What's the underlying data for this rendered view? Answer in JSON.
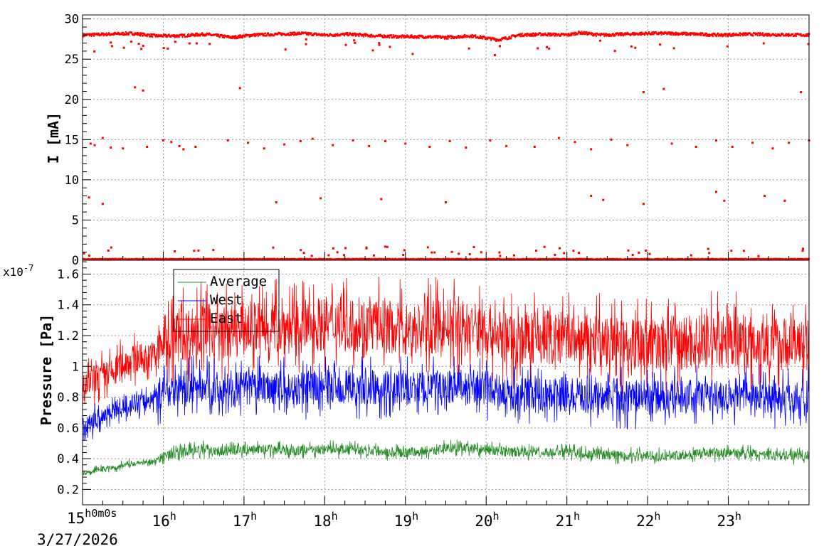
{
  "chart_data": [
    {
      "type": "scatter",
      "panel": "top",
      "ylabel": "I [mA]",
      "ylim": [
        0,
        30.5
      ],
      "yticks": [
        0,
        5,
        10,
        15,
        20,
        25,
        30
      ],
      "ytick_labels": [
        "0",
        "5",
        "10",
        "15",
        "20",
        "25",
        "30"
      ],
      "xlim_hours": [
        15.0,
        24.0
      ],
      "grid": true,
      "series": [
        {
          "color": "#ff0000",
          "marker": "square",
          "main_band_mA": [
            28.0,
            28.1,
            28.2,
            27.9,
            27.9,
            28.1,
            27.7,
            28.0,
            28.1,
            28.2,
            28.0,
            28.1,
            27.9,
            27.8,
            27.8,
            27.7,
            27.9,
            27.4,
            28.0,
            28.1,
            28.0,
            28.3,
            28.0,
            28.1,
            28.2,
            28.2,
            28.1,
            28.0,
            28.1,
            28.0
          ],
          "main_band_hours": [
            15.0,
            15.3,
            15.6,
            15.9,
            16.2,
            16.5,
            16.85,
            17.1,
            17.4,
            17.7,
            18.0,
            18.3,
            18.6,
            18.9,
            19.2,
            19.5,
            19.8,
            20.15,
            20.4,
            20.7,
            21.0,
            21.15,
            21.4,
            21.7,
            22.0,
            22.3,
            22.6,
            22.9,
            23.2,
            23.9
          ],
          "outliers": [
            {
              "x": 15.1,
              "y": 14.5
            },
            {
              "x": 15.15,
              "y": 14.3
            },
            {
              "x": 15.25,
              "y": 15.2
            },
            {
              "x": 15.35,
              "y": 14.0
            },
            {
              "x": 15.5,
              "y": 13.9
            },
            {
              "x": 15.65,
              "y": 21.5
            },
            {
              "x": 15.75,
              "y": 21.1
            },
            {
              "x": 15.8,
              "y": 14.1
            },
            {
              "x": 16.0,
              "y": 14.9
            },
            {
              "x": 16.1,
              "y": 14.7
            },
            {
              "x": 16.2,
              "y": 14.2
            },
            {
              "x": 16.25,
              "y": 13.8
            },
            {
              "x": 16.4,
              "y": 14.1
            },
            {
              "x": 16.8,
              "y": 14.9
            },
            {
              "x": 16.95,
              "y": 21.4
            },
            {
              "x": 17.05,
              "y": 14.6
            },
            {
              "x": 17.25,
              "y": 13.9
            },
            {
              "x": 17.5,
              "y": 14.4
            },
            {
              "x": 17.7,
              "y": 14.8
            },
            {
              "x": 17.85,
              "y": 15.1
            },
            {
              "x": 18.1,
              "y": 14.3
            },
            {
              "x": 18.35,
              "y": 14.9
            },
            {
              "x": 18.55,
              "y": 14.2
            },
            {
              "x": 18.75,
              "y": 14.8
            },
            {
              "x": 19.0,
              "y": 14.5
            },
            {
              "x": 19.3,
              "y": 14.1
            },
            {
              "x": 19.55,
              "y": 14.8
            },
            {
              "x": 19.75,
              "y": 14.0
            },
            {
              "x": 20.05,
              "y": 14.9
            },
            {
              "x": 20.25,
              "y": 14.2
            },
            {
              "x": 20.6,
              "y": 14.1
            },
            {
              "x": 20.9,
              "y": 15.2
            },
            {
              "x": 21.1,
              "y": 14.7
            },
            {
              "x": 21.3,
              "y": 13.8
            },
            {
              "x": 21.55,
              "y": 15.0
            },
            {
              "x": 21.75,
              "y": 14.3
            },
            {
              "x": 21.95,
              "y": 20.9
            },
            {
              "x": 22.2,
              "y": 21.3
            },
            {
              "x": 22.3,
              "y": 14.5
            },
            {
              "x": 22.6,
              "y": 14.1
            },
            {
              "x": 22.85,
              "y": 14.9
            },
            {
              "x": 23.05,
              "y": 14.1
            },
            {
              "x": 23.3,
              "y": 14.6
            },
            {
              "x": 23.55,
              "y": 13.9
            },
            {
              "x": 23.75,
              "y": 14.6
            },
            {
              "x": 23.9,
              "y": 20.9
            },
            {
              "x": 24.0,
              "y": 14.9
            },
            {
              "x": 15.08,
              "y": 7.8
            },
            {
              "x": 15.25,
              "y": 7.0
            },
            {
              "x": 17.4,
              "y": 7.2
            },
            {
              "x": 17.95,
              "y": 7.7
            },
            {
              "x": 18.7,
              "y": 7.6
            },
            {
              "x": 19.5,
              "y": 7.2
            },
            {
              "x": 21.3,
              "y": 8.0
            },
            {
              "x": 21.45,
              "y": 7.5
            },
            {
              "x": 21.95,
              "y": 7.0
            },
            {
              "x": 22.85,
              "y": 8.5
            },
            {
              "x": 22.95,
              "y": 7.4
            },
            {
              "x": 23.45,
              "y": 8.0
            },
            {
              "x": 23.7,
              "y": 7.4
            }
          ]
        }
      ]
    },
    {
      "type": "line",
      "panel": "bottom",
      "ylabel": "Pressure [Pa]",
      "y_multiplier_label": "x10",
      "y_multiplier_exp": "-7",
      "ylim": [
        0.1,
        1.69
      ],
      "yticks": [
        0.2,
        0.4,
        0.6,
        0.8,
        1.0,
        1.2,
        1.4,
        1.6
      ],
      "ytick_labels": [
        "0.2",
        "0.4",
        "0.6",
        "0.8",
        "1",
        "1.2",
        "1.4",
        "1.6"
      ],
      "xlim_hours": [
        15.0,
        24.0
      ],
      "grid": true,
      "legend": {
        "placement": "top-left",
        "entries": [
          "Average",
          "West",
          "East"
        ]
      },
      "x_hours": [
        15.0,
        15.1,
        15.2,
        15.3,
        15.4,
        15.5,
        15.6,
        15.7,
        15.8,
        15.9,
        16.0,
        16.2,
        16.5,
        16.8,
        17.0,
        17.3,
        17.6,
        18.0,
        18.3,
        18.6,
        19.0,
        19.3,
        19.6,
        20.0,
        20.3,
        20.6,
        21.0,
        21.3,
        21.6,
        22.0,
        22.3,
        22.6,
        23.0,
        23.3,
        23.6,
        24.0
      ],
      "series": [
        {
          "name": "Average",
          "color": "#228b22",
          "values": [
            0.3,
            0.31,
            0.33,
            0.34,
            0.34,
            0.36,
            0.37,
            0.37,
            0.38,
            0.38,
            0.42,
            0.44,
            0.46,
            0.45,
            0.46,
            0.46,
            0.45,
            0.46,
            0.46,
            0.45,
            0.44,
            0.45,
            0.47,
            0.46,
            0.44,
            0.44,
            0.44,
            0.43,
            0.42,
            0.42,
            0.42,
            0.43,
            0.44,
            0.43,
            0.42,
            0.42
          ],
          "spread": 0.04
        },
        {
          "name": "West",
          "color": "#0000ff",
          "values": [
            0.6,
            0.63,
            0.66,
            0.7,
            0.72,
            0.74,
            0.76,
            0.76,
            0.77,
            0.8,
            0.84,
            0.86,
            0.87,
            0.84,
            0.86,
            0.87,
            0.85,
            0.87,
            0.86,
            0.86,
            0.86,
            0.86,
            0.87,
            0.86,
            0.82,
            0.82,
            0.82,
            0.8,
            0.8,
            0.8,
            0.8,
            0.81,
            0.82,
            0.81,
            0.8,
            0.8
          ],
          "spread": 0.14
        },
        {
          "name": "East",
          "color": "#ff0000",
          "values": [
            0.82,
            0.9,
            0.93,
            0.94,
            0.96,
            1.02,
            1.04,
            1.05,
            1.05,
            1.08,
            1.16,
            1.2,
            1.24,
            1.22,
            1.25,
            1.26,
            1.25,
            1.28,
            1.27,
            1.27,
            1.24,
            1.25,
            1.27,
            1.24,
            1.18,
            1.18,
            1.18,
            1.16,
            1.15,
            1.15,
            1.15,
            1.16,
            1.17,
            1.16,
            1.15,
            1.14
          ],
          "spread": 0.22
        }
      ]
    }
  ],
  "x_axis": {
    "start_label": "15",
    "start_label_suffix": "h0m0s",
    "date_label": "3/27/2026",
    "tick_hours": [
      16,
      17,
      18,
      19,
      20,
      21,
      22,
      23
    ],
    "tick_labels": [
      "16",
      "17",
      "18",
      "19",
      "20",
      "21",
      "22",
      "23"
    ],
    "tick_suffix": "h"
  }
}
